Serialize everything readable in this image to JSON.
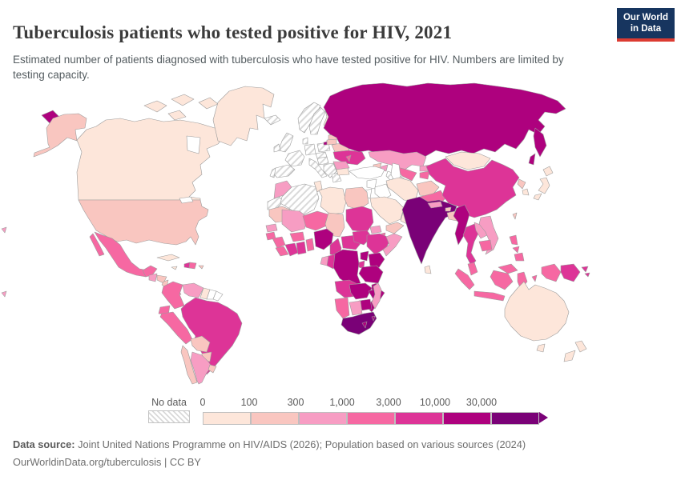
{
  "header": {
    "title": "Tuberculosis patients who tested positive for HIV, 2021",
    "subtitle": "Estimated number of patients diagnosed with tuberculosis who have tested positive for HIV. Numbers are limited by testing capacity.",
    "logo": {
      "line1": "Our World",
      "line2": "in Data",
      "bg": "#17355f",
      "accent": "#dc3b32"
    }
  },
  "legend": {
    "no_data_label": "No data",
    "tick_labels": [
      "0",
      "100",
      "300",
      "1,000",
      "3,000",
      "10,000",
      "30,000"
    ],
    "bin_ranges": [
      "0-100",
      "100-300",
      "300-1,000",
      "1,000-3,000",
      "3,000-10,000",
      "10,000-30,000",
      "30,000+"
    ],
    "colors": [
      "#fde6da",
      "#f9c6c0",
      "#f79dc3",
      "#f668a2",
      "#dd3497",
      "#ae017e",
      "#7a0177"
    ],
    "zero_color": "#ffffff",
    "hatch_line_color": "#d9d9d9"
  },
  "footer": {
    "source_label": "Data source:",
    "source_text": "Joint United Nations Programme on HIV/AIDS (2026); Population based on various sources (2024)",
    "link_text": "OurWorldinData.org/tuberculosis",
    "separator": "|",
    "license": "CC BY"
  },
  "chart_data": {
    "type": "choropleth",
    "title": "Tuberculosis patients who tested positive for HIV, 2021",
    "year": 2021,
    "unit": "patients",
    "bins": {
      "thresholds": [
        0,
        100,
        300,
        1000,
        3000,
        10000,
        30000
      ],
      "scheme": "light-pink-to-dark-purple"
    },
    "countries": {
      "canada": 0,
      "greenland": 0,
      "alaska": 1,
      "usa": 1,
      "mexico": 3,
      "guatemala": 2,
      "honduras": 1,
      "nicaragua": 1,
      "costa-rica": 0,
      "panama": 3,
      "cuba": 0,
      "jamaica": 0,
      "haiti": 4,
      "dominican-republic": 3,
      "puerto-rico": 1,
      "colombia": 3,
      "venezuela": 2,
      "guyana": 0,
      "suriname": "w",
      "french-guiana": "w",
      "ecuador": 3,
      "peru": 3,
      "brazil": 4,
      "bolivia": 1,
      "paraguay": 1,
      "chile": 1,
      "argentina": 2,
      "uruguay": 1,
      "iceland": "nd",
      "norway": "nd",
      "sweden": "nd",
      "finland": 0,
      "uk": "nd",
      "ireland": "nd",
      "denmark": "nd",
      "germany": "nd",
      "france": "nd",
      "spain": "nd",
      "portugal": "nd",
      "italy": "nd",
      "poland": "nd",
      "czechia-slovakia": "nd",
      "austria-hungary": "nd",
      "balkans": "nd",
      "greece": "nd",
      "estonia": 0,
      "latvia": 1,
      "lithuania": 1,
      "belarus": 1,
      "ukraine": 4,
      "moldova": 3,
      "romania": 2,
      "bulgaria": 0,
      "russia": 5,
      "kazakhstan": 2,
      "uzbekistan": 3,
      "turkmenistan": "nd",
      "kyrgyzstan": 2,
      "tajikistan": 3,
      "georgia": 1,
      "azerbaijan": 2,
      "turkey": "w",
      "syria": "w",
      "iraq": "w",
      "jordan": "w",
      "saudi-arabia": 0,
      "yemen": 1,
      "oman": 0,
      "iran": 0,
      "afghanistan": 1,
      "pakistan": 3,
      "mongolia": 0,
      "china": 4,
      "north-korea": 1,
      "south-korea": 0,
      "japan": 0,
      "taiwan": 1,
      "india": 6,
      "nepal": 2,
      "bhutan": 1,
      "bangladesh": 1,
      "sri-lanka": 0,
      "myanmar": 5,
      "thailand": 4,
      "laos": 2,
      "vietnam": 2,
      "cambodia": 3,
      "malaysia": 3,
      "indonesia": 3,
      "philippines": 3,
      "papua-new-guinea": 4,
      "solomon-islands": 4,
      "pacific-islands": 2,
      "morocco": 2,
      "western-sahara": "nd",
      "algeria": "nd",
      "tunisia": 0,
      "libya": 0,
      "egypt": 1,
      "mauritania": 1,
      "mali": 2,
      "senegal": 2,
      "guinea-bissau": 3,
      "guinea": 3,
      "sierra-leone": 3,
      "cote-divoire": 4,
      "ghana": 4,
      "burkina-faso": 3,
      "togo-benin": 3,
      "niger": 3,
      "chad": 1,
      "nigeria": 5,
      "cameroon": 4,
      "central-african-republic": 4,
      "sudan": 4,
      "south-sudan": 4,
      "eritrea": 2,
      "djibouti": 3,
      "ethiopia": 4,
      "somalia": 2,
      "kenya": 5,
      "uganda": 5,
      "rwanda-burundi": 4,
      "tanzania": 5,
      "drc": 5,
      "congo": 4,
      "gabon": 2,
      "angola": 4,
      "zambia": 5,
      "malawi": 5,
      "mozambique": 5,
      "zimbabwe": 5,
      "botswana": 2,
      "namibia": 3,
      "south-africa": 6,
      "lesotho": 5,
      "eswatini": 5,
      "madagascar": 2,
      "australia": 0,
      "new-zealand": 0
    }
  }
}
